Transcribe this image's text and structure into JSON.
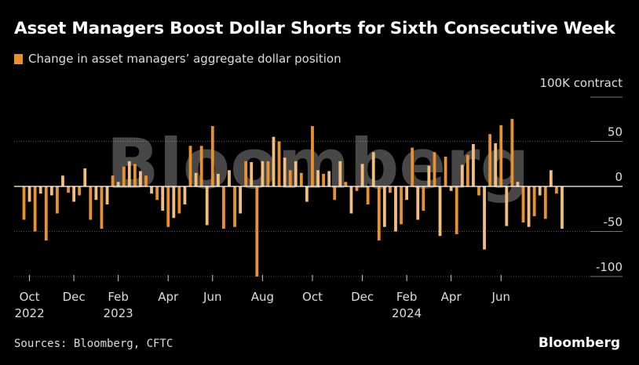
{
  "title": "Asset Managers Boost Dollar Shorts for Sixth Consecutive Week",
  "legend": {
    "label": "Change in asset managers’ aggregate dollar position",
    "color": "#e8922f",
    "color_light": "#f3bd7b"
  },
  "watermark": "Bloomberg",
  "footer": {
    "source": "Sources: Bloomberg, CFTC",
    "brand": "Bloomberg"
  },
  "chart_data": {
    "type": "bar",
    "ylabel": "100K contract",
    "ylim": [
      -115,
      100
    ],
    "yticks": [
      50,
      0,
      -50,
      -100
    ],
    "ytick_labels": [
      "50",
      "0",
      "-50",
      "-100"
    ],
    "grid": true,
    "x_tick_labels": [
      {
        "label": "Oct",
        "sub": "2022",
        "index": 1
      },
      {
        "label": "Dec",
        "sub": "",
        "index": 9
      },
      {
        "label": "Feb",
        "sub": "2023",
        "index": 17
      },
      {
        "label": "Apr",
        "sub": "",
        "index": 26
      },
      {
        "label": "Jun",
        "sub": "",
        "index": 34
      },
      {
        "label": "Aug",
        "sub": "",
        "index": 43
      },
      {
        "label": "Oct",
        "sub": "",
        "index": 52
      },
      {
        "label": "Dec",
        "sub": "",
        "index": 61
      },
      {
        "label": "Feb",
        "sub": "2024",
        "index": 69
      },
      {
        "label": "Apr",
        "sub": "",
        "index": 77
      },
      {
        "label": "Jun",
        "sub": "",
        "index": 86
      }
    ],
    "series": [
      {
        "values": [
          -37,
          -17,
          -50,
          -8,
          -60,
          -10,
          -30,
          12,
          -7,
          -17,
          -10,
          20,
          -37,
          -15,
          -47,
          -20,
          12,
          5,
          22,
          28,
          25,
          17,
          12,
          -8,
          -15,
          -27,
          -45,
          -35,
          -30,
          -20,
          45,
          15,
          45,
          -43,
          67,
          14,
          -47,
          18,
          -45,
          -30,
          28,
          27,
          -100,
          28,
          28,
          55,
          50,
          32,
          18,
          28,
          15,
          -17,
          67,
          18,
          14,
          17,
          -15,
          28,
          5,
          -30,
          -5,
          25,
          -20,
          38,
          -60,
          -45,
          -7,
          -50,
          -42,
          -15,
          43,
          -37,
          -27,
          23,
          38,
          -55,
          33,
          -5,
          -53,
          24,
          35,
          47,
          -10,
          -70,
          58,
          48,
          68,
          -44,
          75,
          5,
          -40,
          -45,
          -33,
          -10,
          -36,
          18,
          -8,
          -47
        ]
      }
    ]
  }
}
